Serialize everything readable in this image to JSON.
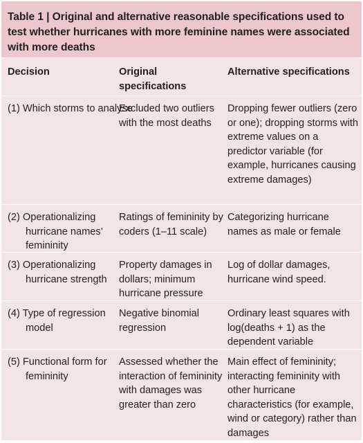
{
  "caption": {
    "number": "Table 1 |",
    "text": "Original and alternative reasonable specifications used to test whether hurricanes with more feminine names were associated with more deaths"
  },
  "columns": [
    "Decision",
    "Original specifications",
    "Alternative specifications"
  ],
  "rows": [
    {
      "decision": "(1) Which storms to analyse",
      "original": "Excluded two outliers with the most deaths",
      "alternative": "Dropping fewer outliers (zero or one); dropping storms with extreme values on a predictor variable (for example, hurricanes causing extreme damages)"
    },
    {
      "decision": "(2) Operationalizing hurricane names’ femininity",
      "original": "Ratings of femininity by coders (1–11 scale)",
      "alternative": "Categorizing hurricane names as male or female"
    },
    {
      "decision": "(3) Operationalizing hurricane strength",
      "original": "Property damages in dollars; minimum hurricane pressure",
      "alternative": "Log of dollar damages, hurricane wind speed."
    },
    {
      "decision": "(4) Type of regression model",
      "original": "Negative binomial regression",
      "alternative": "Ordinary least squares with log(deaths + 1) as the dependent variable"
    },
    {
      "decision": "(5) Functional form for femininity",
      "original": "Assessed whether the interaction of femininity with damages was greater than zero",
      "alternative": "Main effect of femininity; interacting femininity with other hurricane characteristics (for example, wind or category) rather than damages"
    }
  ]
}
